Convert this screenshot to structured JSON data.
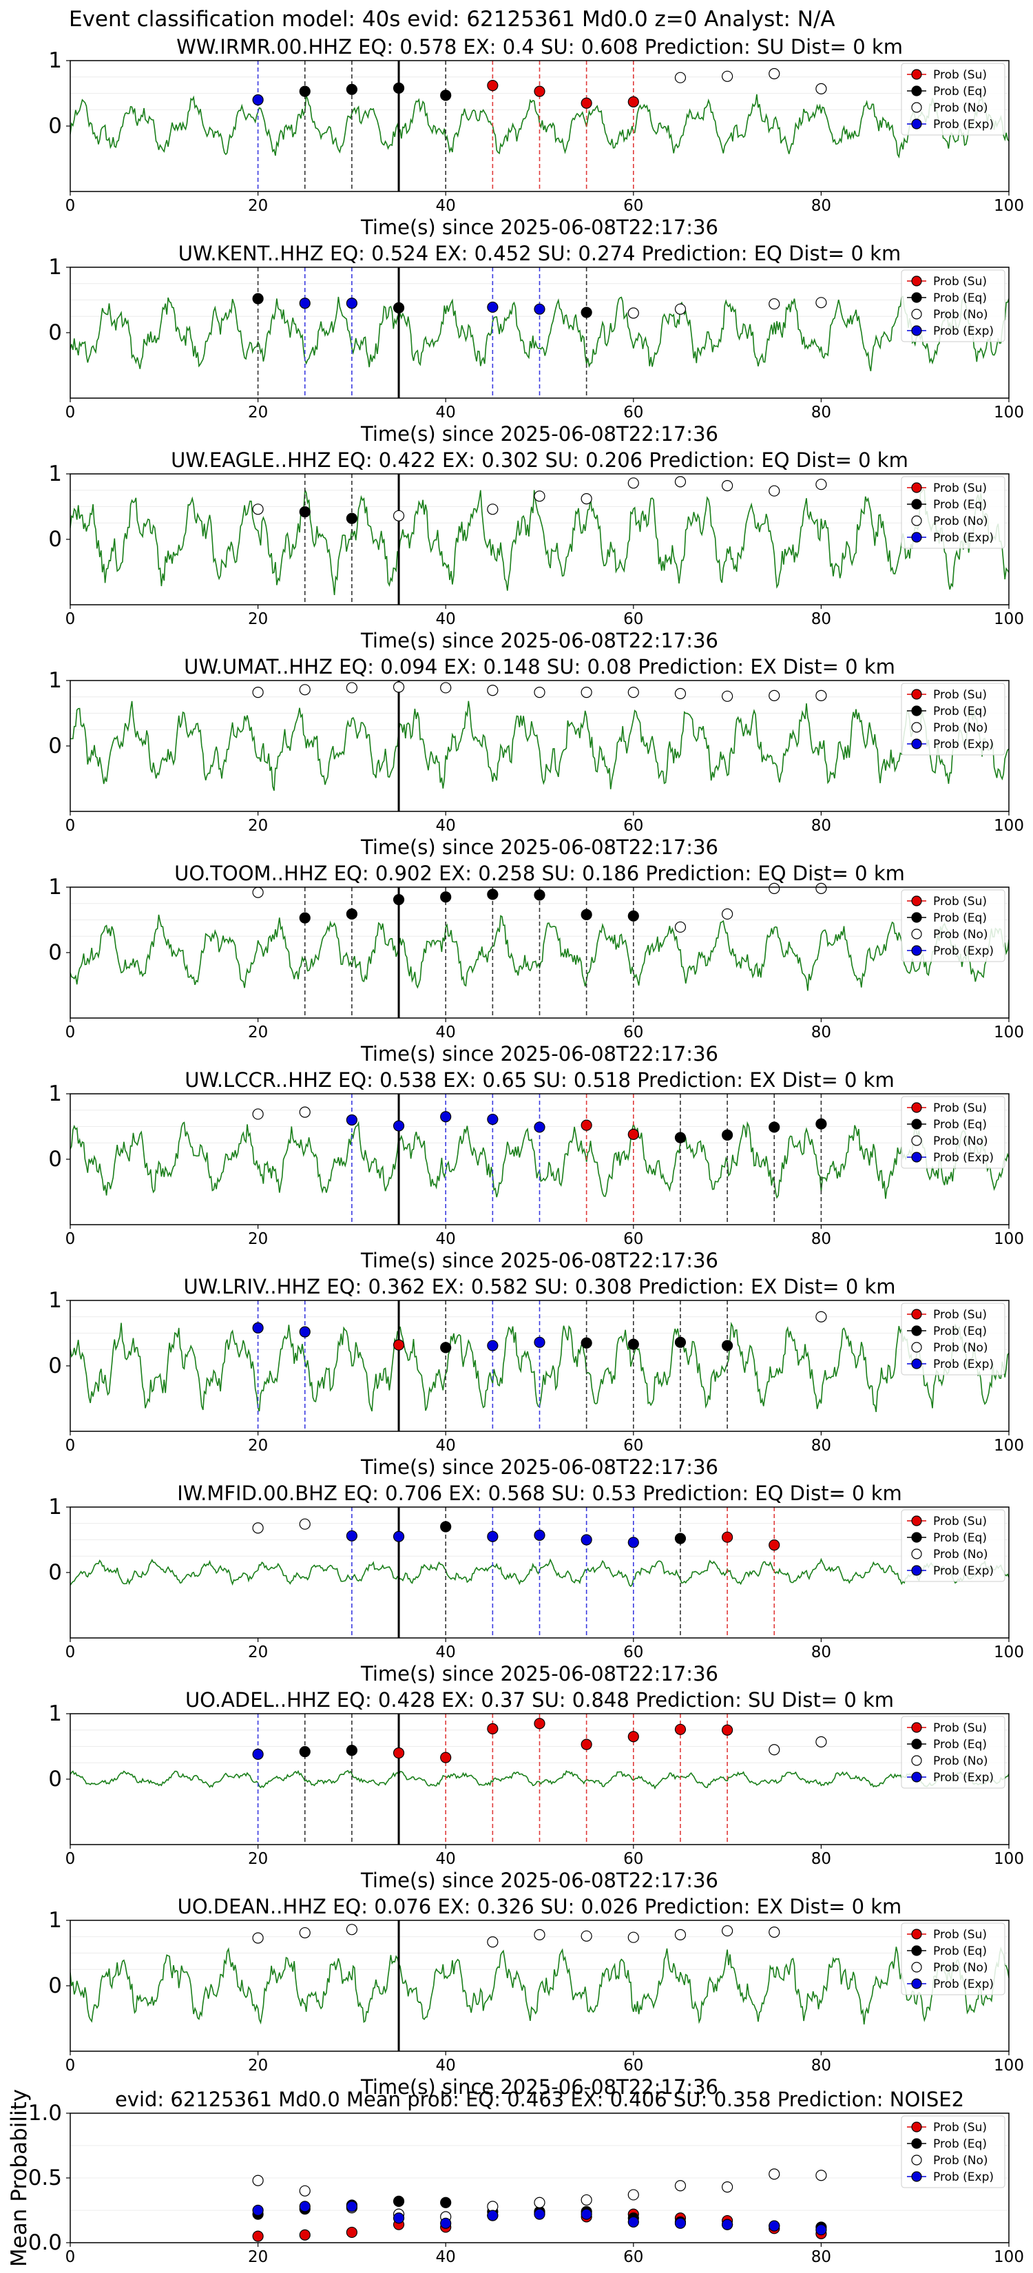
{
  "figure": {
    "suptitle": "Event classification model: 40s evid: 62125361 Md0.0 z=0 Analyst: N/A",
    "xlabel": "Time(s) since 2025-06-08T22:17:36",
    "mean_ylabel": "Mean Probability",
    "legend": [
      "Prob (Su)",
      "Prob (Eq)",
      "Prob (No)",
      "Prob (Exp)"
    ]
  },
  "chart_data": [
    {
      "type": "scatter",
      "title": "WW.IRMR.00.HHZ   EQ: 0.578  EX: 0.4  SU: 0.608   Prediction: SU    Dist= 0 km",
      "xlim": [
        0,
        100
      ],
      "ylim": [
        -1,
        1
      ],
      "xticks": [
        "0",
        "20",
        "40",
        "60",
        "80",
        "100"
      ],
      "yticks": [
        "1",
        "0"
      ],
      "legend_position": "top-right",
      "trace_amp": 0.35,
      "trace_seed": 11,
      "event_line_x": 35,
      "series": [
        {
          "name": "Prob (Su)",
          "x": [
            45,
            50,
            55,
            60
          ],
          "y": [
            0.62,
            0.53,
            0.35,
            0.37
          ]
        },
        {
          "name": "Prob (Eq)",
          "x": [
            25,
            30,
            35,
            40
          ],
          "y": [
            0.53,
            0.56,
            0.58,
            0.47
          ]
        },
        {
          "name": "Prob (No)",
          "x": [
            65,
            70,
            75,
            80
          ],
          "y": [
            0.74,
            0.76,
            0.8,
            0.57
          ]
        },
        {
          "name": "Prob (Exp)",
          "x": [
            20
          ],
          "y": [
            0.4
          ]
        }
      ]
    },
    {
      "type": "scatter",
      "title": "UW.KENT..HHZ   EQ: 0.524  EX: 0.452  SU: 0.274   Prediction: EQ    Dist= 0 km",
      "xlim": [
        0,
        100
      ],
      "ylim": [
        -1,
        1
      ],
      "xticks": [
        "0",
        "20",
        "40",
        "60",
        "80",
        "100"
      ],
      "yticks": [
        "1",
        "0"
      ],
      "legend_position": "top-right",
      "trace_amp": 0.45,
      "trace_seed": 23,
      "event_line_x": 35,
      "series": [
        {
          "name": "Prob (Su)",
          "x": [],
          "y": []
        },
        {
          "name": "Prob (Eq)",
          "x": [
            20,
            35,
            55
          ],
          "y": [
            0.52,
            0.38,
            0.31
          ]
        },
        {
          "name": "Prob (No)",
          "x": [
            60,
            65,
            75,
            80
          ],
          "y": [
            0.3,
            0.36,
            0.44,
            0.46
          ]
        },
        {
          "name": "Prob (Exp)",
          "x": [
            25,
            30,
            45,
            50
          ],
          "y": [
            0.45,
            0.45,
            0.39,
            0.36
          ]
        }
      ]
    },
    {
      "type": "scatter",
      "title": "UW.EAGLE..HHZ   EQ: 0.422  EX: 0.302  SU: 0.206   Prediction: EQ    Dist= 0 km",
      "xlim": [
        0,
        100
      ],
      "ylim": [
        -1,
        1
      ],
      "xticks": [
        "0",
        "20",
        "40",
        "60",
        "80",
        "100"
      ],
      "yticks": [
        "1",
        "0"
      ],
      "legend_position": "top-right",
      "trace_amp": 0.6,
      "trace_seed": 37,
      "event_line_x": 35,
      "series": [
        {
          "name": "Prob (Su)",
          "x": [],
          "y": []
        },
        {
          "name": "Prob (Eq)",
          "x": [
            25,
            30
          ],
          "y": [
            0.42,
            0.32
          ]
        },
        {
          "name": "Prob (No)",
          "x": [
            20,
            35,
            45,
            50,
            55,
            60,
            65,
            70,
            75,
            80
          ],
          "y": [
            0.46,
            0.36,
            0.46,
            0.66,
            0.62,
            0.86,
            0.88,
            0.82,
            0.74,
            0.84
          ]
        },
        {
          "name": "Prob (Exp)",
          "x": [],
          "y": []
        }
      ]
    },
    {
      "type": "scatter",
      "title": "UW.UMAT..HHZ   EQ: 0.094  EX: 0.148  SU: 0.08   Prediction: EX    Dist= 0 km",
      "xlim": [
        0,
        100
      ],
      "ylim": [
        -1,
        1
      ],
      "xticks": [
        "0",
        "20",
        "40",
        "60",
        "80",
        "100"
      ],
      "yticks": [
        "1",
        "0"
      ],
      "legend_position": "top-right",
      "trace_amp": 0.5,
      "trace_seed": 41,
      "event_line_x": 35,
      "series": [
        {
          "name": "Prob (Su)",
          "x": [],
          "y": []
        },
        {
          "name": "Prob (Eq)",
          "x": [],
          "y": []
        },
        {
          "name": "Prob (No)",
          "x": [
            20,
            25,
            30,
            35,
            40,
            45,
            50,
            55,
            60,
            65,
            70,
            75,
            80
          ],
          "y": [
            0.82,
            0.86,
            0.89,
            0.9,
            0.89,
            0.85,
            0.82,
            0.82,
            0.82,
            0.8,
            0.76,
            0.77,
            0.77
          ]
        },
        {
          "name": "Prob (Exp)",
          "x": [],
          "y": []
        }
      ]
    },
    {
      "type": "scatter",
      "title": "UO.TOOM..HHZ   EQ: 0.902  EX: 0.258  SU: 0.186   Prediction: EQ    Dist= 0 km",
      "xlim": [
        0,
        100
      ],
      "ylim": [
        -1,
        1
      ],
      "xticks": [
        "0",
        "20",
        "40",
        "60",
        "80",
        "100"
      ],
      "yticks": [
        "1",
        "0"
      ],
      "legend_position": "top-right",
      "trace_amp": 0.42,
      "trace_seed": 53,
      "event_line_x": 35,
      "series": [
        {
          "name": "Prob (Su)",
          "x": [],
          "y": []
        },
        {
          "name": "Prob (Eq)",
          "x": [
            25,
            30,
            35,
            40,
            45,
            50,
            55,
            60
          ],
          "y": [
            0.53,
            0.59,
            0.81,
            0.85,
            0.89,
            0.88,
            0.58,
            0.56
          ]
        },
        {
          "name": "Prob (No)",
          "x": [
            20,
            65,
            70,
            75,
            80
          ],
          "y": [
            0.92,
            0.39,
            0.59,
            0.98,
            0.98
          ]
        },
        {
          "name": "Prob (Exp)",
          "x": [],
          "y": []
        }
      ]
    },
    {
      "type": "scatter",
      "title": "UW.LCCR..HHZ   EQ: 0.538  EX: 0.65  SU: 0.518   Prediction: EX    Dist= 0 km",
      "xlim": [
        0,
        100
      ],
      "ylim": [
        -1,
        1
      ],
      "xticks": [
        "0",
        "20",
        "40",
        "60",
        "80",
        "100"
      ],
      "yticks": [
        "1",
        "0"
      ],
      "legend_position": "top-right",
      "trace_amp": 0.45,
      "trace_seed": 67,
      "event_line_x": 35,
      "series": [
        {
          "name": "Prob (Su)",
          "x": [
            55,
            60
          ],
          "y": [
            0.52,
            0.38
          ]
        },
        {
          "name": "Prob (Eq)",
          "x": [
            65,
            70,
            75,
            80
          ],
          "y": [
            0.33,
            0.37,
            0.49,
            0.54
          ]
        },
        {
          "name": "Prob (No)",
          "x": [
            20,
            25
          ],
          "y": [
            0.69,
            0.72
          ]
        },
        {
          "name": "Prob (Exp)",
          "x": [
            30,
            35,
            40,
            45,
            50
          ],
          "y": [
            0.6,
            0.51,
            0.65,
            0.61,
            0.49
          ]
        }
      ]
    },
    {
      "type": "scatter",
      "title": "UW.LRIV..HHZ   EQ: 0.362  EX: 0.582  SU: 0.308   Prediction: EX    Dist= 0 km",
      "xlim": [
        0,
        100
      ],
      "ylim": [
        -1,
        1
      ],
      "xticks": [
        "0",
        "20",
        "40",
        "60",
        "80",
        "100"
      ],
      "yticks": [
        "1",
        "0"
      ],
      "legend_position": "top-right",
      "trace_amp": 0.55,
      "trace_seed": 71,
      "event_line_x": 35,
      "series": [
        {
          "name": "Prob (Su)",
          "x": [
            35
          ],
          "y": [
            0.32
          ]
        },
        {
          "name": "Prob (Eq)",
          "x": [
            40,
            55,
            60,
            65,
            70
          ],
          "y": [
            0.28,
            0.35,
            0.33,
            0.36,
            0.31
          ]
        },
        {
          "name": "Prob (No)",
          "x": [
            80
          ],
          "y": [
            0.75
          ]
        },
        {
          "name": "Prob (Exp)",
          "x": [
            20,
            25,
            45,
            50
          ],
          "y": [
            0.58,
            0.52,
            0.31,
            0.36
          ]
        }
      ]
    },
    {
      "type": "scatter",
      "title": "IW.MFID.00.BHZ   EQ: 0.706  EX: 0.568  SU: 0.53   Prediction: EQ    Dist= 0 km",
      "xlim": [
        0,
        100
      ],
      "ylim": [
        -1,
        1
      ],
      "xticks": [
        "0",
        "20",
        "40",
        "60",
        "80",
        "100"
      ],
      "yticks": [
        "1",
        "0"
      ],
      "legend_position": "top-right",
      "trace_amp": 0.15,
      "trace_seed": 83,
      "event_line_x": 35,
      "series": [
        {
          "name": "Prob (Su)",
          "x": [
            70,
            75
          ],
          "y": [
            0.54,
            0.42
          ]
        },
        {
          "name": "Prob (Eq)",
          "x": [
            40,
            65
          ],
          "y": [
            0.7,
            0.52
          ]
        },
        {
          "name": "Prob (No)",
          "x": [
            20,
            25
          ],
          "y": [
            0.68,
            0.74
          ]
        },
        {
          "name": "Prob (Exp)",
          "x": [
            30,
            35,
            45,
            50,
            55,
            60
          ],
          "y": [
            0.56,
            0.55,
            0.55,
            0.57,
            0.5,
            0.46
          ]
        }
      ]
    },
    {
      "type": "scatter",
      "title": "UO.ADEL..HHZ   EQ: 0.428  EX: 0.37  SU: 0.848   Prediction: SU    Dist= 0 km",
      "xlim": [
        0,
        100
      ],
      "ylim": [
        -1,
        1
      ],
      "xticks": [
        "0",
        "20",
        "40",
        "60",
        "80",
        "100"
      ],
      "yticks": [
        "1",
        "0"
      ],
      "legend_position": "top-right",
      "trace_amp": 0.1,
      "trace_seed": 97,
      "event_line_x": 35,
      "series": [
        {
          "name": "Prob (Su)",
          "x": [
            35,
            40,
            45,
            50,
            55,
            60,
            65,
            70
          ],
          "y": [
            0.4,
            0.33,
            0.77,
            0.85,
            0.53,
            0.65,
            0.76,
            0.75
          ]
        },
        {
          "name": "Prob (Eq)",
          "x": [
            25,
            30
          ],
          "y": [
            0.42,
            0.44
          ]
        },
        {
          "name": "Prob (No)",
          "x": [
            75,
            80
          ],
          "y": [
            0.45,
            0.57
          ]
        },
        {
          "name": "Prob (Exp)",
          "x": [
            20
          ],
          "y": [
            0.38
          ]
        }
      ]
    },
    {
      "type": "scatter",
      "title": "UO.DEAN..HHZ   EQ: 0.076  EX: 0.326  SU: 0.026   Prediction: EX    Dist= 0 km",
      "xlim": [
        0,
        100
      ],
      "ylim": [
        -1,
        1
      ],
      "xticks": [
        "0",
        "20",
        "40",
        "60",
        "80",
        "100"
      ],
      "yticks": [
        "1",
        "0"
      ],
      "legend_position": "top-right",
      "trace_amp": 0.45,
      "trace_seed": 101,
      "event_line_x": 35,
      "series": [
        {
          "name": "Prob (Su)",
          "x": [],
          "y": []
        },
        {
          "name": "Prob (Eq)",
          "x": [],
          "y": []
        },
        {
          "name": "Prob (No)",
          "x": [
            20,
            25,
            30,
            45,
            50,
            55,
            60,
            65,
            70,
            75
          ],
          "y": [
            0.73,
            0.81,
            0.86,
            0.67,
            0.78,
            0.76,
            0.74,
            0.78,
            0.84,
            0.82
          ]
        },
        {
          "name": "Prob (Exp)",
          "x": [],
          "y": []
        }
      ]
    },
    {
      "type": "scatter",
      "title": "evid: 62125361  Md0.0   Mean prob:   EQ: 0.463  EX: 0.406  SU: 0.358   Prediction: NOISE2",
      "xlim": [
        0,
        100
      ],
      "ylim": [
        0,
        1
      ],
      "xticks": [
        "0",
        "20",
        "40",
        "60",
        "80",
        "100"
      ],
      "yticks": [
        "1.0",
        "0.5",
        "0.0"
      ],
      "legend_position": "top-right",
      "series": [
        {
          "name": "Prob (Su)",
          "x": [
            20,
            25,
            30,
            35,
            40,
            45,
            50,
            55,
            60,
            65,
            70,
            75,
            80
          ],
          "y": [
            0.05,
            0.06,
            0.08,
            0.14,
            0.12,
            0.21,
            0.23,
            0.2,
            0.22,
            0.19,
            0.17,
            0.11,
            0.07
          ]
        },
        {
          "name": "Prob (Eq)",
          "x": [
            20,
            25,
            30,
            35,
            40,
            45,
            50,
            55,
            60,
            65,
            70,
            75,
            80
          ],
          "y": [
            0.22,
            0.26,
            0.29,
            0.32,
            0.31,
            0.24,
            0.24,
            0.24,
            0.19,
            0.16,
            0.14,
            0.13,
            0.12
          ]
        },
        {
          "name": "Prob (No)",
          "x": [
            20,
            25,
            30,
            35,
            40,
            45,
            50,
            55,
            60,
            65,
            70,
            75,
            80
          ],
          "y": [
            0.48,
            0.4,
            0.27,
            0.22,
            0.2,
            0.28,
            0.31,
            0.33,
            0.37,
            0.44,
            0.43,
            0.53,
            0.52
          ]
        },
        {
          "name": "Prob (Exp)",
          "x": [
            20,
            25,
            30,
            35,
            40,
            45,
            50,
            55,
            60,
            65,
            70,
            75,
            80
          ],
          "y": [
            0.25,
            0.28,
            0.28,
            0.19,
            0.15,
            0.21,
            0.22,
            0.22,
            0.16,
            0.15,
            0.14,
            0.13,
            0.1
          ]
        }
      ]
    }
  ]
}
